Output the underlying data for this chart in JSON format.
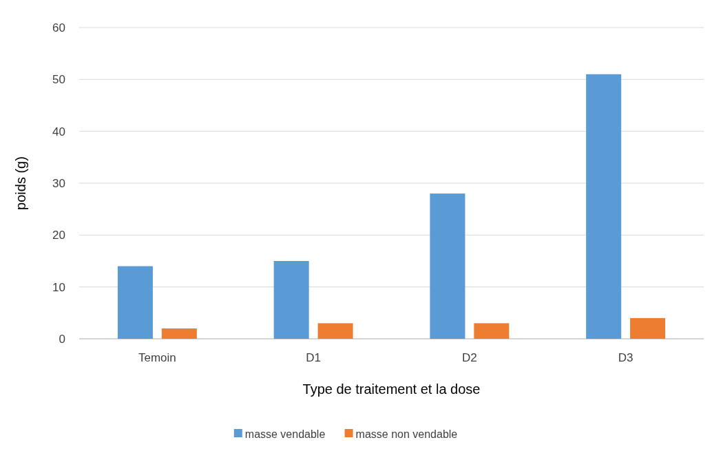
{
  "chart_data": {
    "type": "bar",
    "xlabel": "Type de traitement et la dose",
    "ylabel": "poids (g)",
    "categories": [
      "Temoin",
      "D1",
      "D2",
      "D3"
    ],
    "series": [
      {
        "name": "masse vendable",
        "color": "#5b9bd5",
        "values": [
          14,
          15,
          28,
          51
        ]
      },
      {
        "name": "masse non vendable",
        "color": "#ed7d31",
        "values": [
          2,
          3,
          3,
          4
        ]
      }
    ],
    "ylim": [
      0,
      60
    ],
    "yticks": [
      0,
      10,
      20,
      30,
      40,
      50,
      60
    ],
    "grid": "y",
    "legend": "bottom"
  }
}
